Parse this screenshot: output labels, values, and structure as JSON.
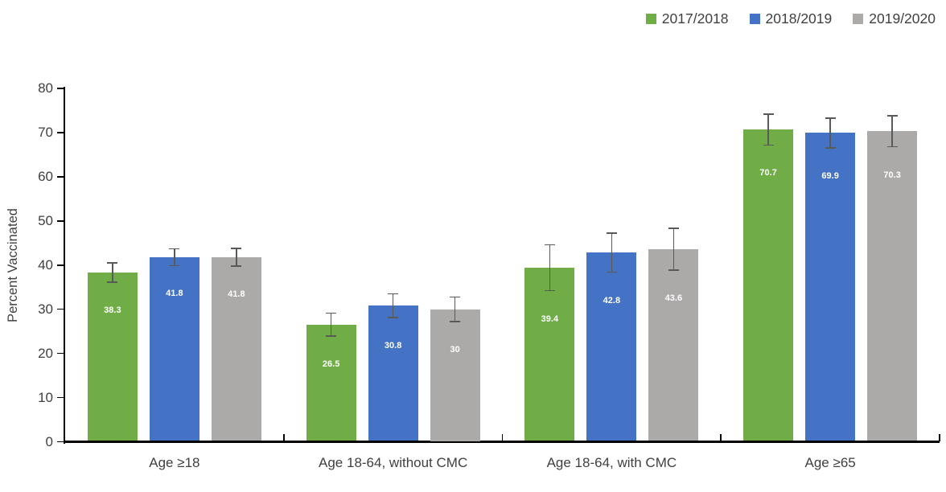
{
  "chart_data": {
    "type": "bar",
    "title": "",
    "ylabel": "Percent Vaccinated",
    "xlabel": "",
    "ylim": [
      0,
      80
    ],
    "yticks": [
      0,
      10,
      20,
      30,
      40,
      50,
      60,
      70,
      80
    ],
    "grid": false,
    "legend_position": "top-right",
    "categories": [
      "Age ≥18",
      "Age 18-64, without CMC",
      "Age 18-64, with CMC",
      "Age ≥65"
    ],
    "series": [
      {
        "name": "2017/2018",
        "color": "#70AD47",
        "values": [
          38.3,
          26.5,
          39.4,
          70.7
        ],
        "labels": [
          "38.3",
          "26.5",
          "39.4",
          "70.7"
        ],
        "errors": [
          2.2,
          2.6,
          5.2,
          3.5
        ]
      },
      {
        "name": "2018/2019",
        "color": "#4472C4",
        "values": [
          41.8,
          30.8,
          42.8,
          69.9
        ],
        "labels": [
          "41.8",
          "30.8",
          "42.8",
          "69.9"
        ],
        "errors": [
          1.9,
          2.7,
          4.4,
          3.4
        ]
      },
      {
        "name": "2019/2020",
        "color": "#ACA9A9",
        "values": [
          41.8,
          30,
          43.6,
          70.3
        ],
        "labels": [
          "41.8",
          "30",
          "43.6",
          "70.3"
        ],
        "errors": [
          2.0,
          2.8,
          4.7,
          3.5
        ]
      }
    ],
    "data_label_color": "#FFFFFF",
    "error_bar_color": "#595959",
    "axis_color": "#000000",
    "text_color": "#404040"
  }
}
